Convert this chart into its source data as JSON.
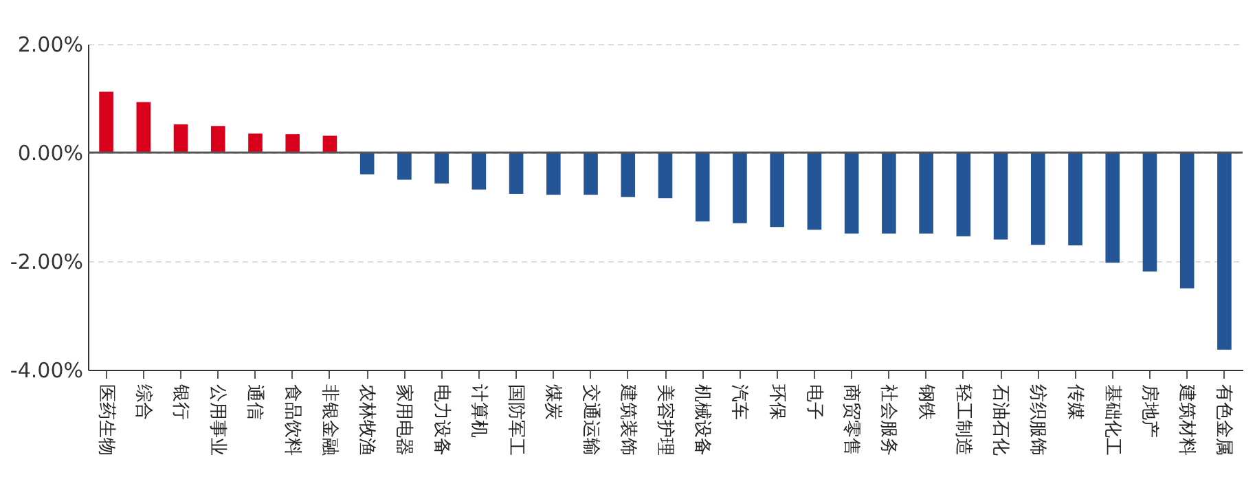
{
  "chart_data": {
    "type": "bar",
    "categories": [
      "医药生物",
      "综合",
      "银行",
      "公用事业",
      "通信",
      "食品饮料",
      "非银金融",
      "农林牧渔",
      "家用电器",
      "电力设备",
      "计算机",
      "国防军工",
      "煤炭",
      "交通运输",
      "建筑装饰",
      "美容护理",
      "机械设备",
      "汽车",
      "环保",
      "电子",
      "商贸零售",
      "社会服务",
      "钢铁",
      "轻工制造",
      "石油石化",
      "纺织服饰",
      "传媒",
      "基础化工",
      "房地产",
      "建筑材料",
      "有色金属"
    ],
    "values": [
      1.12,
      0.93,
      0.52,
      0.49,
      0.35,
      0.34,
      0.31,
      -0.4,
      -0.5,
      -0.57,
      -0.68,
      -0.76,
      -0.78,
      -0.78,
      -0.82,
      -0.84,
      -1.27,
      -1.3,
      -1.37,
      -1.42,
      -1.49,
      -1.49,
      -1.49,
      -1.54,
      -1.6,
      -1.7,
      -1.71,
      -2.03,
      -2.19,
      -2.5,
      -3.63
    ],
    "colors": [
      "#d9001b",
      "#d9001b",
      "#d9001b",
      "#d9001b",
      "#d9001b",
      "#d9001b",
      "#d9001b",
      "#235597",
      "#235597",
      "#235597",
      "#235597",
      "#235597",
      "#235597",
      "#235597",
      "#235597",
      "#235597",
      "#235597",
      "#235597",
      "#235597",
      "#235597",
      "#235597",
      "#235597",
      "#235597",
      "#235597",
      "#235597",
      "#235597",
      "#235597",
      "#235597",
      "#235597",
      "#235597",
      "#235597"
    ],
    "ylim": [
      -4,
      2
    ],
    "yticks": [
      {
        "value": -4,
        "label": "-4.00%"
      },
      {
        "value": -2,
        "label": "-2.00%"
      },
      {
        "value": 0,
        "label": "0.00%"
      },
      {
        "value": 2,
        "label": "2.00%"
      }
    ],
    "grid": "y",
    "ref_lines": [
      {
        "axis": "y",
        "value": 0,
        "color": "#555555"
      }
    ]
  }
}
